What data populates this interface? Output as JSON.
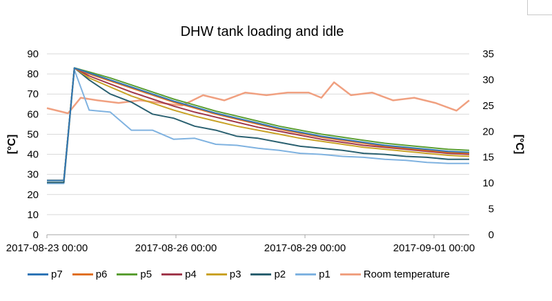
{
  "chart_data": {
    "type": "line",
    "title": "DHW tank loading and idle",
    "ylabel": "[°C]",
    "y2label": "[°C]",
    "ylim": [
      0,
      90
    ],
    "y2lim": [
      0,
      35
    ],
    "yticks": [
      "0",
      "10",
      "20",
      "30",
      "40",
      "50",
      "60",
      "70",
      "80",
      "90"
    ],
    "y2ticks": [
      "0",
      "5",
      "10",
      "15",
      "20",
      "25",
      "30",
      "35"
    ],
    "xticks": [
      "2017-08-23 00:00",
      "2017-08-26 00:00",
      "2017-08-29 00:00",
      "2017-09-01 00:00"
    ],
    "x_unit": "days since 2017-08-23 00:00",
    "xlim": [
      0,
      10
    ],
    "grid": "horizontal",
    "legend_position": "bottom",
    "series": [
      {
        "name": "p7",
        "color": "#2e75b6",
        "axis": "left",
        "x": [
          0,
          0.4,
          0.65,
          1.0,
          1.5,
          2,
          2.5,
          3,
          3.5,
          4,
          4.5,
          5,
          5.5,
          6,
          6.5,
          7,
          7.5,
          8,
          8.5,
          9,
          9.5,
          10
        ],
        "y": [
          27,
          27,
          83,
          80.5,
          77,
          73.5,
          70,
          66.5,
          63.5,
          60.5,
          58,
          55.5,
          53,
          51,
          49,
          47.5,
          46,
          44.5,
          43.5,
          42.5,
          41.5,
          41
        ]
      },
      {
        "name": "p6",
        "color": "#e07020",
        "axis": "left",
        "x": [
          0,
          0.4,
          0.65,
          1.0,
          1.5,
          2,
          2.5,
          3,
          3.5,
          4,
          4.5,
          5,
          5.5,
          6,
          6.5,
          7,
          7.5,
          8,
          8.5,
          9,
          9.5,
          10
        ],
        "y": [
          27,
          27,
          83,
          80,
          76.5,
          73,
          69.5,
          66,
          63,
          60,
          57.5,
          55,
          52.5,
          50.5,
          48.5,
          47,
          45.5,
          44,
          43,
          42,
          41,
          40.5
        ]
      },
      {
        "name": "p5",
        "color": "#5a9e32",
        "axis": "left",
        "x": [
          0,
          0.4,
          0.65,
          1.0,
          1.5,
          2,
          2.5,
          3,
          3.5,
          4,
          4.5,
          5,
          5.5,
          6,
          6.5,
          7,
          7.5,
          8,
          8.5,
          9,
          9.5,
          10
        ],
        "y": [
          27,
          27,
          83,
          81,
          78,
          74.5,
          71,
          67.5,
          64.5,
          61.5,
          59,
          56.5,
          54,
          52,
          50,
          48.5,
          47,
          45.5,
          44.5,
          43.5,
          42.5,
          42
        ]
      },
      {
        "name": "p4",
        "color": "#a0384c",
        "axis": "left",
        "x": [
          0,
          0.4,
          0.65,
          1.0,
          1.5,
          2,
          2.5,
          3,
          3.5,
          4,
          4.5,
          5,
          5.5,
          6,
          6.5,
          7,
          7.5,
          8,
          8.5,
          9,
          9.5,
          10
        ],
        "y": [
          27,
          27,
          83,
          79,
          75,
          71,
          67.5,
          64,
          61,
          58.5,
          56,
          53.5,
          51.5,
          49.5,
          47.5,
          46,
          44.5,
          43.5,
          42.5,
          41.5,
          40.5,
          40
        ]
      },
      {
        "name": "p3",
        "color": "#c9a227",
        "axis": "left",
        "x": [
          0,
          0.4,
          0.65,
          1.0,
          1.5,
          2,
          2.5,
          3,
          3.5,
          4,
          4.5,
          5,
          5.5,
          6,
          6.5,
          7,
          7.5,
          8,
          8.5,
          9,
          9.5,
          10
        ],
        "y": [
          27,
          27,
          83,
          78,
          73.5,
          69,
          65.5,
          62,
          59,
          56.5,
          54,
          52,
          50,
          48,
          46.5,
          45,
          43.5,
          42.5,
          41.5,
          40.5,
          39.5,
          39
        ]
      },
      {
        "name": "p2",
        "color": "#2a6070",
        "axis": "left",
        "x": [
          0,
          0.4,
          0.65,
          1.0,
          1.5,
          2,
          2.5,
          3,
          3.5,
          4,
          4.5,
          5,
          5.5,
          6,
          6.5,
          7,
          7.5,
          8,
          8.5,
          9,
          9.5,
          10
        ],
        "y": [
          26,
          26,
          83,
          77,
          70,
          66,
          60,
          58,
          54,
          52,
          49,
          48,
          46,
          44,
          43,
          42,
          40.5,
          40,
          39,
          38.5,
          37.5,
          37.5
        ]
      },
      {
        "name": "p1",
        "color": "#7fb2e0",
        "axis": "left",
        "x": [
          0,
          0.4,
          0.65,
          1.0,
          1.5,
          2,
          2.5,
          3,
          3.5,
          4,
          4.5,
          5,
          5.5,
          6,
          6.5,
          7,
          7.5,
          8,
          8.5,
          9,
          9.5,
          10
        ],
        "y": [
          25.5,
          25.5,
          82,
          62,
          61,
          52,
          52,
          47.5,
          48,
          45,
          44.5,
          43,
          42,
          40.5,
          40,
          39,
          38.5,
          37.5,
          37,
          36,
          35.5,
          35.5
        ]
      },
      {
        "name": "Room temperature",
        "color": "#f0a080",
        "axis": "right",
        "x": [
          0,
          0.5,
          0.8,
          1.2,
          1.7,
          2.2,
          2.7,
          3.2,
          3.7,
          4.2,
          4.7,
          5.2,
          5.7,
          6.2,
          6.5,
          6.8,
          7.2,
          7.7,
          8.2,
          8.7,
          9.2,
          9.7,
          10
        ],
        "y": [
          24.5,
          23.5,
          26.5,
          26,
          25.5,
          26,
          25.5,
          25,
          27,
          26,
          27.5,
          27,
          27.5,
          27.5,
          26.5,
          29.5,
          27,
          27.5,
          26,
          26.5,
          25.5,
          24,
          26
        ]
      }
    ]
  }
}
